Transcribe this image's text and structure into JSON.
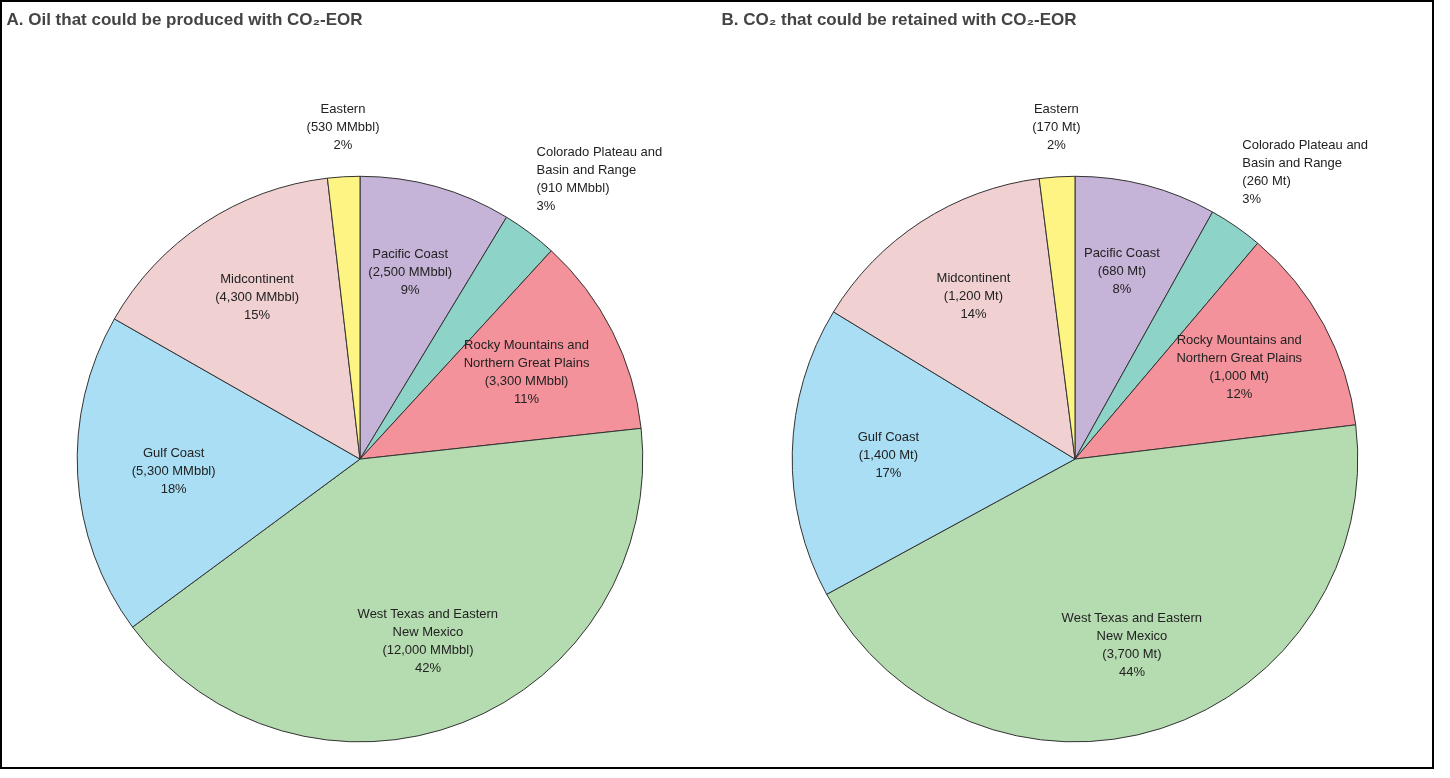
{
  "chart_data": [
    {
      "type": "pie",
      "title": "A.  Oil that could be produced with CO₂-EOR",
      "categories": [
        "Pacific Coast",
        "Colorado Plateau and Basin and Range",
        "Rocky Mountains and Northern Great Plains",
        "West Texas and Eastern New Mexico",
        "Gulf Coast",
        "Midcontinent",
        "Eastern"
      ],
      "values": [
        2500,
        910,
        3300,
        12000,
        5300,
        4300,
        530
      ],
      "value_labels": [
        "(2,500 MMbbl)\n9%",
        "(910 MMbbl)\n3%",
        "(3,300 MMbbl)\n11%",
        "(12,000 MMbbl)\n42%",
        "(5,300 MMbbl)\n18%",
        "(4,300 MMbbl)\n15%",
        "(530 MMbbl)\n2%"
      ],
      "colors": [
        "#c5b3d8",
        "#8dd3c7",
        "#f4929b",
        "#b5dcb0",
        "#a9def5",
        "#f0d0d0",
        "#fdf484"
      ]
    },
    {
      "type": "pie",
      "title": "B.  CO₂ that could be retained with CO₂-EOR",
      "categories": [
        "Pacific Coast",
        "Colorado Plateau and Basin and Range",
        "Rocky Mountains and Northern Great Plains",
        "West Texas and Eastern New Mexico",
        "Gulf Coast",
        "Midcontinent",
        "Eastern"
      ],
      "values": [
        680,
        260,
        1000,
        3700,
        1400,
        1200,
        170
      ],
      "value_labels": [
        "(680 Mt)\n8%",
        "(260 Mt)\n3%",
        "(1,000 Mt)\n12%",
        "(3,700 Mt)\n44%",
        "(1,400 Mt)\n17%",
        "(1,200 Mt)\n14%",
        "(170 Mt)\n2%"
      ],
      "colors": [
        "#c5b3d8",
        "#8dd3c7",
        "#f4929b",
        "#b5dcb0",
        "#a9def5",
        "#f0d0d0",
        "#fdf484"
      ]
    }
  ]
}
